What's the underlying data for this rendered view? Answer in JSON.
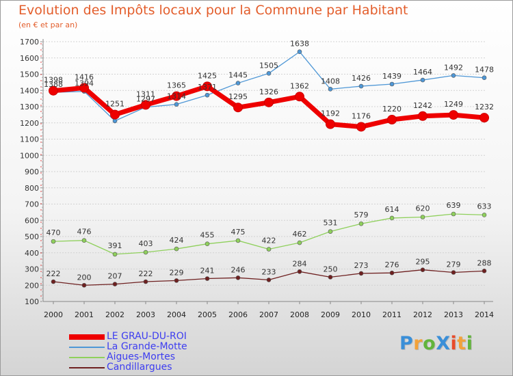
{
  "header": {
    "title": "Evolution des Impôts locaux pour la Commune par Habitant",
    "subtitle": "(en € et par an)"
  },
  "logo": {
    "text": "ProXiti",
    "colors": [
      "#3a8fd8",
      "#f2a23a",
      "#62b43c",
      "#3a8fd8",
      "#e84b2a",
      "#f2a23a",
      "#62b43c"
    ]
  },
  "chart_data": {
    "type": "line",
    "title": "Evolution des Impôts locaux pour la Commune par Habitant",
    "subtitle": "(en € et par an)",
    "xlabel": "",
    "ylabel": "",
    "x": [
      "2000",
      "2001",
      "2002",
      "2003",
      "2004",
      "2005",
      "2006",
      "2007",
      "2008",
      "2009",
      "2010",
      "2011",
      "2012",
      "2013",
      "2014"
    ],
    "yticks": [
      "100",
      "200",
      "300",
      "400",
      "500",
      "600",
      "700",
      "800",
      "900",
      "1000",
      "1100",
      "1200",
      "1300",
      "1400",
      "1500",
      "1600",
      "1700"
    ],
    "ylim": [
      100,
      1700
    ],
    "grid": "horizontal",
    "legend_position": "bottom-left",
    "series": [
      {
        "name": "LE GRAU-DU-ROI",
        "color": "#ee0000",
        "values": [
          1398,
          1416,
          1251,
          1311,
          1365,
          1425,
          1295,
          1326,
          1362,
          1192,
          1176,
          1220,
          1242,
          1249,
          1232
        ],
        "labels": [
          "1398",
          "1416",
          "1251",
          "1311",
          "1365",
          "1425",
          "1295",
          "1326",
          "1362",
          "1192",
          "1176",
          "1220",
          "1242",
          "1249",
          "1232"
        ]
      },
      {
        "name": "La Grande-Motte",
        "color": "#4e97d6",
        "values": [
          1388,
          1394,
          1212,
          1297,
          1314,
          1371,
          1445,
          1505,
          1638,
          1408,
          1426,
          1439,
          1464,
          1492,
          1478
        ],
        "labels": [
          "1388",
          "1394",
          "",
          "1297",
          "1314",
          "1371",
          "1445",
          "1505",
          "1638",
          "1408",
          "1426",
          "1439",
          "1464",
          "1492",
          "1478"
        ]
      },
      {
        "name": "Aigues-Mortes",
        "color": "#8fd05c",
        "values": [
          470,
          476,
          391,
          403,
          424,
          455,
          475,
          422,
          462,
          531,
          579,
          614,
          620,
          639,
          633
        ],
        "labels": [
          "470",
          "476",
          "391",
          "403",
          "424",
          "455",
          "475",
          "422",
          "462",
          "531",
          "579",
          "614",
          "620",
          "639",
          "633"
        ]
      },
      {
        "name": "Candillargues",
        "color": "#6e2020",
        "values": [
          222,
          200,
          207,
          222,
          229,
          241,
          246,
          233,
          284,
          250,
          273,
          276,
          295,
          279,
          288
        ],
        "labels": [
          "222",
          "200",
          "207",
          "222",
          "229",
          "241",
          "246",
          "233",
          "284",
          "250",
          "273",
          "276",
          "295",
          "279",
          "288"
        ]
      }
    ]
  }
}
